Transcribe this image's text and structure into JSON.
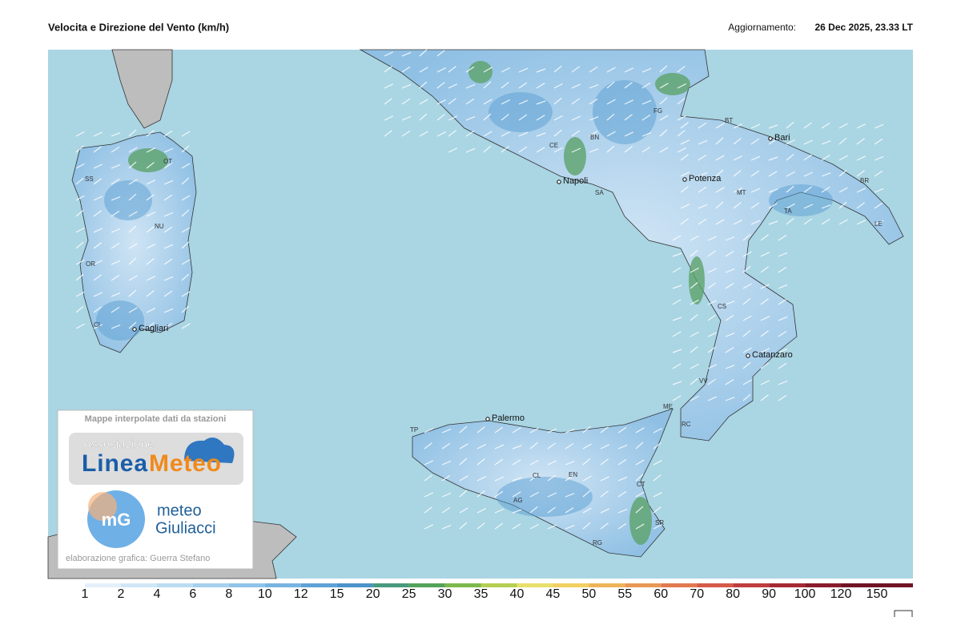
{
  "header": {
    "title": "Velocita e Direzione del Vento  (km/h)",
    "update_label": "Aggiornamento:",
    "update_time": "26 Dec 2025, 23.33 LT"
  },
  "map": {
    "cities": [
      "Napoli",
      "Potenza",
      "Bari",
      "Catanzaro",
      "Palermo",
      "Cagliari"
    ],
    "codes": [
      "SS",
      "OT",
      "NU",
      "OR",
      "CI",
      "CE",
      "BN",
      "FG",
      "BT",
      "SA",
      "MT",
      "TA",
      "BR",
      "LE",
      "CS",
      "VV",
      "RC",
      "ME",
      "TP",
      "CL",
      "EN",
      "AG",
      "CT",
      "SR",
      "RG"
    ]
  },
  "credits": {
    "heading": "Mappe interpolate dati da stazioni",
    "logo1_top": "Associazione",
    "logo1_a": "Linea",
    "logo1_b": "Meteo",
    "logo2_mark": "mG",
    "logo2_line1": "meteo",
    "logo2_line2": "Giuliacci",
    "author": "elaborazione grafica: Guerra Stefano"
  },
  "scale": {
    "ticks": [
      1,
      2,
      4,
      6,
      8,
      10,
      12,
      15,
      20,
      25,
      30,
      35,
      40,
      45,
      50,
      55,
      60,
      70,
      80,
      90,
      100,
      120,
      150
    ],
    "colors": [
      "#ffffff",
      "#e4f0fa",
      "#d0e6f6",
      "#bcdcf2",
      "#a6d0ee",
      "#90c3e8",
      "#78b4e0",
      "#5fa2d6",
      "#4b93c8",
      "#4a9a7e",
      "#53a35a",
      "#7cb84e",
      "#b4cf52",
      "#e7e06a",
      "#f2cf62",
      "#eeb45a",
      "#e89855",
      "#e17a50",
      "#d55a48",
      "#c03e3e",
      "#a52a35",
      "#8a1c2c",
      "#701425"
    ]
  }
}
